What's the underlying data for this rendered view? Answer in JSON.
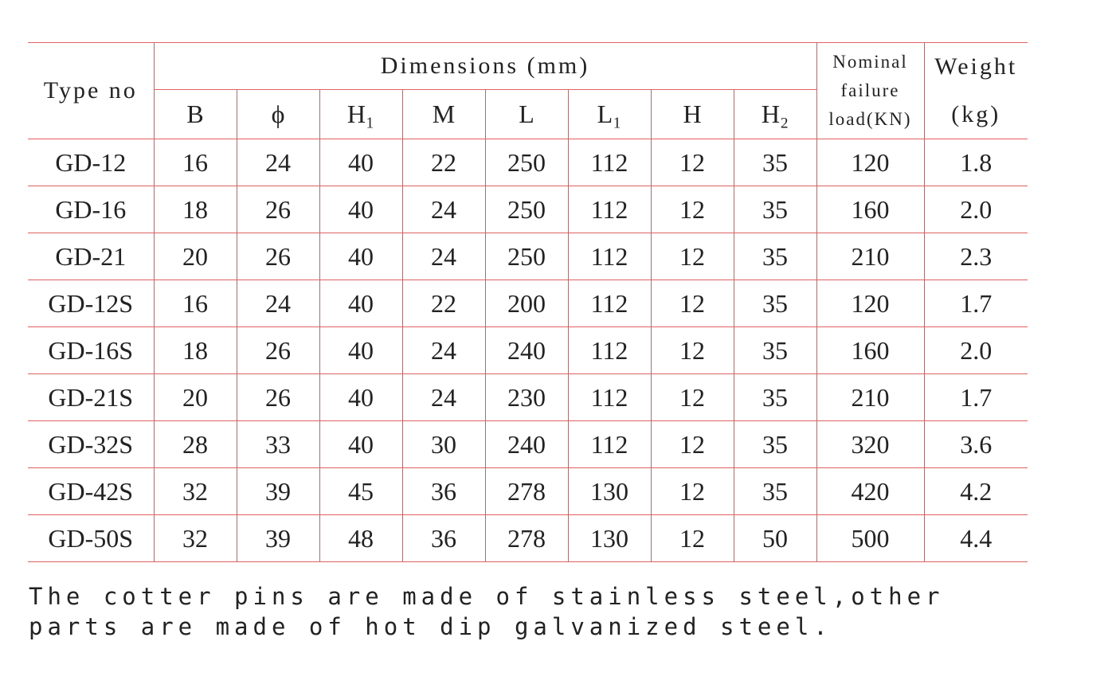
{
  "table": {
    "headers": {
      "type": "Type no",
      "dimensions": "Dimensions (mm)",
      "load": "Nominal failure load(KN)",
      "weight": "Weight (kg)"
    },
    "subheaders": [
      "B",
      "ϕ",
      "H₁",
      "M",
      "L",
      "L₁",
      "H",
      "H₂"
    ],
    "rows": [
      [
        "GD-12",
        "16",
        "24",
        "40",
        "22",
        "250",
        "112",
        "12",
        "35",
        "120",
        "1.8"
      ],
      [
        "GD-16",
        "18",
        "26",
        "40",
        "24",
        "250",
        "112",
        "12",
        "35",
        "160",
        "2.0"
      ],
      [
        "GD-21",
        "20",
        "26",
        "40",
        "24",
        "250",
        "112",
        "12",
        "35",
        "210",
        "2.3"
      ],
      [
        "GD-12S",
        "16",
        "24",
        "40",
        "22",
        "200",
        "112",
        "12",
        "35",
        "120",
        "1.7"
      ],
      [
        "GD-16S",
        "18",
        "26",
        "40",
        "24",
        "240",
        "112",
        "12",
        "35",
        "160",
        "2.0"
      ],
      [
        "GD-21S",
        "20",
        "26",
        "40",
        "24",
        "230",
        "112",
        "12",
        "35",
        "210",
        "1.7"
      ],
      [
        "GD-32S",
        "28",
        "33",
        "40",
        "30",
        "240",
        "112",
        "12",
        "35",
        "320",
        "3.6"
      ],
      [
        "GD-42S",
        "32",
        "39",
        "45",
        "36",
        "278",
        "130",
        "12",
        "35",
        "420",
        "4.2"
      ],
      [
        "GD-50S",
        "32",
        "39",
        "48",
        "36",
        "278",
        "130",
        "12",
        "50",
        "500",
        "4.4"
      ]
    ]
  },
  "note": "The cotter pins are made of stainless steel,other parts are made of hot dip galvanized steel."
}
